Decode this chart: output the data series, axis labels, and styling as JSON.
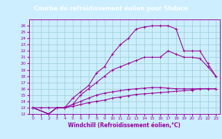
{
  "title": "Courbe du refroidissement éolien pour Slubice",
  "xlabel": "Windchill (Refroidissement éolien,°C)",
  "bg_color": "#cceeff",
  "plot_bg_color": "#cceeff",
  "line_color": "#990099",
  "grid_color": "#99cccc",
  "title_bg": "#660066",
  "title_fg": "#ffffff",
  "xlim": [
    -0.5,
    23.5
  ],
  "ylim": [
    12,
    27
  ],
  "xticks": [
    0,
    1,
    2,
    3,
    4,
    5,
    6,
    7,
    8,
    9,
    10,
    11,
    12,
    13,
    14,
    15,
    16,
    17,
    18,
    19,
    20,
    21,
    22,
    23
  ],
  "yticks": [
    12,
    13,
    14,
    15,
    16,
    17,
    18,
    19,
    20,
    21,
    22,
    23,
    24,
    25,
    26
  ],
  "series": [
    {
      "x": [
        0,
        1,
        2,
        3,
        4,
        5,
        6,
        7,
        8,
        9,
        10,
        11,
        12,
        13,
        14,
        15,
        16,
        17,
        18,
        19,
        20,
        21,
        22,
        23
      ],
      "y": [
        13,
        13,
        13,
        13,
        13,
        13.2,
        13.5,
        13.8,
        14.0,
        14.2,
        14.5,
        14.7,
        14.9,
        15.1,
        15.2,
        15.3,
        15.4,
        15.5,
        15.6,
        15.7,
        15.8,
        16.0,
        16.0,
        16.0
      ]
    },
    {
      "x": [
        0,
        2,
        3,
        4,
        5,
        6,
        7,
        8,
        9,
        10,
        11,
        12,
        13,
        14,
        15,
        16,
        17,
        18,
        19,
        20,
        21,
        22,
        23
      ],
      "y": [
        13,
        12,
        13,
        13,
        13.5,
        14.0,
        14.5,
        15.0,
        15.3,
        15.5,
        15.7,
        15.9,
        16.0,
        16.1,
        16.2,
        16.2,
        16.1,
        16.0,
        16.0,
        16.0,
        16.0,
        16.0,
        16.0
      ]
    },
    {
      "x": [
        0,
        2,
        3,
        4,
        5,
        6,
        7,
        8,
        9,
        10,
        11,
        12,
        13,
        14,
        15,
        16,
        17,
        18,
        19,
        20,
        21,
        22,
        23
      ],
      "y": [
        13,
        12,
        13,
        13,
        13.5,
        15.0,
        16.0,
        17.0,
        18.0,
        19.0,
        19.5,
        20.0,
        20.5,
        21.0,
        21.0,
        21.0,
        22.0,
        21.5,
        21.0,
        21.0,
        20.8,
        19.5,
        18.0
      ]
    },
    {
      "x": [
        0,
        2,
        3,
        4,
        5,
        6,
        7,
        8,
        9,
        10,
        11,
        12,
        13,
        14,
        15,
        16,
        17,
        18,
        19,
        20,
        21,
        22,
        23
      ],
      "y": [
        13,
        12,
        13,
        13,
        14.5,
        15.5,
        16.5,
        18.5,
        19.5,
        21.5,
        23.0,
        24.0,
        25.5,
        25.8,
        26.0,
        26.0,
        26.0,
        25.5,
        22.0,
        22.0,
        22.0,
        20.0,
        18.0
      ]
    }
  ]
}
